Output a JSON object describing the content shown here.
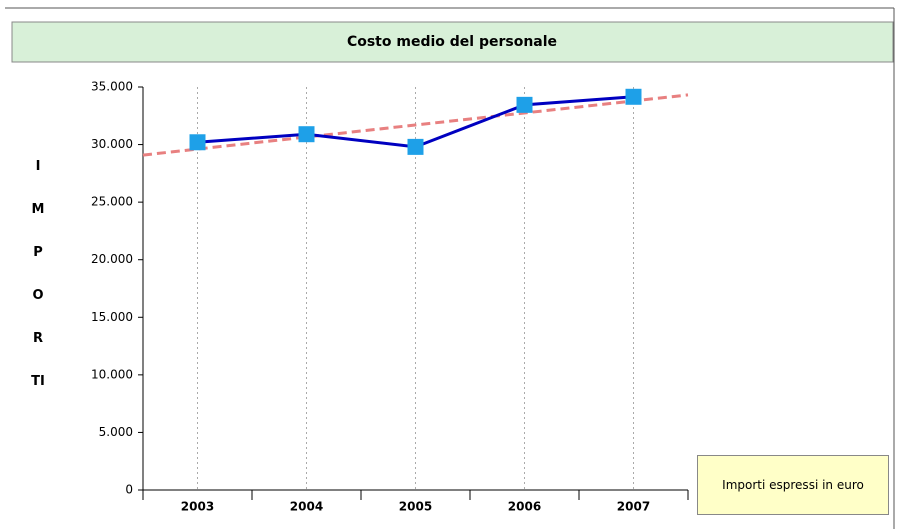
{
  "chart_data": {
    "type": "line",
    "title": "Costo medio del personale",
    "y_label": "IMPORTI",
    "note": "Importi espressi in euro",
    "categories": [
      "2003",
      "2004",
      "2005",
      "2006",
      "2007"
    ],
    "values": [
      30200,
      30900,
      29800,
      33450,
      34150
    ],
    "color": "#0000c0",
    "marker_color": "#1ea0e8",
    "trendline": true,
    "trendline_color": "#e88080",
    "ylim": [
      0,
      35000
    ],
    "yticks": [
      0,
      {
        "value": 5000,
        "label": "5.000"
      },
      {
        "value": 10000,
        "label": "10.000"
      },
      {
        "value": 15000,
        "label": "15.000"
      },
      {
        "value": 20000,
        "label": "20.000"
      },
      {
        "value": 25000,
        "label": "25.000"
      },
      {
        "value": 30000,
        "label": "30.000"
      },
      {
        "value": 35000,
        "label": "35.000"
      }
    ]
  }
}
